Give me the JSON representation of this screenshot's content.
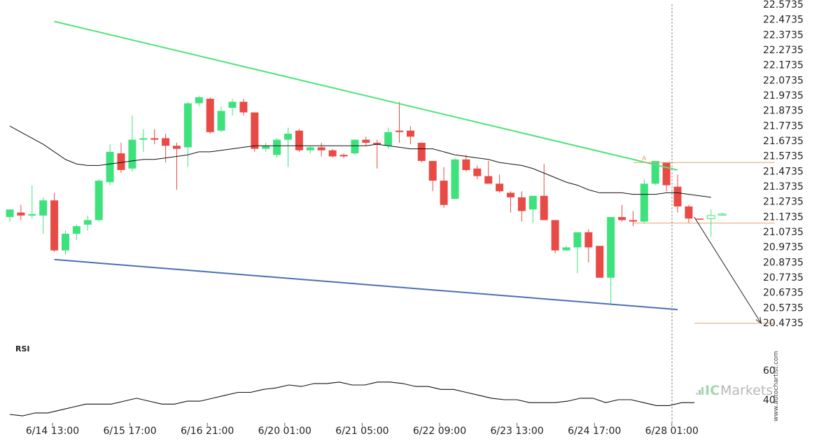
{
  "chart_data": {
    "type": "candlestick",
    "y_ticks": [
      "22.5735",
      "22.4735",
      "22.3735",
      "22.2735",
      "22.1735",
      "22.0735",
      "21.9735",
      "21.8735",
      "21.7735",
      "21.6735",
      "21.5735",
      "21.4735",
      "21.3735",
      "21.2735",
      "21.1735",
      "21.0735",
      "20.9735",
      "20.8735",
      "20.7735",
      "20.6735",
      "20.5735",
      "20.4735"
    ],
    "ylim": [
      20.4235,
      22.5735
    ],
    "x_ticks": [
      "6/14 13:00",
      "6/15 17:00",
      "6/16 21:00",
      "6/20 01:00",
      "6/21 05:00",
      "6/22 09:00",
      "6/23 13:00",
      "6/24 17:00",
      "6/28 01:00"
    ],
    "candles": [
      {
        "o": 21.17,
        "h": 21.22,
        "l": 21.14,
        "c": 21.22
      },
      {
        "o": 21.2,
        "h": 21.25,
        "l": 21.15,
        "c": 21.18
      },
      {
        "o": 21.18,
        "h": 21.38,
        "l": 21.16,
        "c": 21.19
      },
      {
        "o": 21.18,
        "h": 21.3,
        "l": 21.06,
        "c": 21.28
      },
      {
        "o": 21.28,
        "h": 21.33,
        "l": 20.94,
        "c": 20.95
      },
      {
        "o": 20.95,
        "h": 21.08,
        "l": 20.92,
        "c": 21.06
      },
      {
        "o": 21.06,
        "h": 21.12,
        "l": 21.02,
        "c": 21.11
      },
      {
        "o": 21.12,
        "h": 21.18,
        "l": 21.08,
        "c": 21.15
      },
      {
        "o": 21.15,
        "h": 21.42,
        "l": 21.14,
        "c": 21.41
      },
      {
        "o": 21.4,
        "h": 21.65,
        "l": 21.38,
        "c": 21.6
      },
      {
        "o": 21.59,
        "h": 21.66,
        "l": 21.46,
        "c": 21.48
      },
      {
        "o": 21.49,
        "h": 21.84,
        "l": 21.47,
        "c": 21.68
      },
      {
        "o": 21.68,
        "h": 21.75,
        "l": 21.6,
        "c": 21.69
      },
      {
        "o": 21.69,
        "h": 21.75,
        "l": 21.65,
        "c": 21.68
      },
      {
        "o": 21.69,
        "h": 21.72,
        "l": 21.53,
        "c": 21.64
      },
      {
        "o": 21.64,
        "h": 21.66,
        "l": 21.35,
        "c": 21.62
      },
      {
        "o": 21.63,
        "h": 21.93,
        "l": 21.5,
        "c": 21.92
      },
      {
        "o": 21.92,
        "h": 21.97,
        "l": 21.9,
        "c": 21.96
      },
      {
        "o": 21.95,
        "h": 21.96,
        "l": 21.72,
        "c": 21.73
      },
      {
        "o": 21.74,
        "h": 21.9,
        "l": 21.73,
        "c": 21.87
      },
      {
        "o": 21.89,
        "h": 21.95,
        "l": 21.84,
        "c": 21.93
      },
      {
        "o": 21.93,
        "h": 21.95,
        "l": 21.84,
        "c": 21.86
      },
      {
        "o": 21.86,
        "h": 21.86,
        "l": 21.6,
        "c": 21.62
      },
      {
        "o": 21.62,
        "h": 21.66,
        "l": 21.6,
        "c": 21.64
      },
      {
        "o": 21.58,
        "h": 21.69,
        "l": 21.56,
        "c": 21.68
      },
      {
        "o": 21.68,
        "h": 21.76,
        "l": 21.5,
        "c": 21.72
      },
      {
        "o": 21.74,
        "h": 21.75,
        "l": 21.6,
        "c": 21.61
      },
      {
        "o": 21.61,
        "h": 21.64,
        "l": 21.59,
        "c": 21.63
      },
      {
        "o": 21.63,
        "h": 21.66,
        "l": 21.57,
        "c": 21.61
      },
      {
        "o": 21.61,
        "h": 21.62,
        "l": 21.56,
        "c": 21.57
      },
      {
        "o": 21.58,
        "h": 21.59,
        "l": 21.56,
        "c": 21.57
      },
      {
        "o": 21.59,
        "h": 21.68,
        "l": 21.58,
        "c": 21.68
      },
      {
        "o": 21.68,
        "h": 21.7,
        "l": 21.64,
        "c": 21.66
      },
      {
        "o": 21.66,
        "h": 21.68,
        "l": 21.49,
        "c": 21.65
      },
      {
        "o": 21.64,
        "h": 21.76,
        "l": 21.62,
        "c": 21.73
      },
      {
        "o": 21.74,
        "h": 21.93,
        "l": 21.66,
        "c": 21.73
      },
      {
        "o": 21.74,
        "h": 21.77,
        "l": 21.65,
        "c": 21.7
      },
      {
        "o": 21.66,
        "h": 21.66,
        "l": 21.53,
        "c": 21.54
      },
      {
        "o": 21.54,
        "h": 21.54,
        "l": 21.34,
        "c": 21.41
      },
      {
        "o": 21.41,
        "h": 21.5,
        "l": 21.23,
        "c": 21.25
      },
      {
        "o": 21.29,
        "h": 21.56,
        "l": 21.29,
        "c": 21.55
      },
      {
        "o": 21.55,
        "h": 21.58,
        "l": 21.47,
        "c": 21.48
      },
      {
        "o": 21.49,
        "h": 21.51,
        "l": 21.42,
        "c": 21.44
      },
      {
        "o": 21.44,
        "h": 21.54,
        "l": 21.4,
        "c": 21.39
      },
      {
        "o": 21.39,
        "h": 21.45,
        "l": 21.33,
        "c": 21.34
      },
      {
        "o": 21.33,
        "h": 21.34,
        "l": 21.2,
        "c": 21.3
      },
      {
        "o": 21.3,
        "h": 21.34,
        "l": 21.14,
        "c": 21.21
      },
      {
        "o": 21.22,
        "h": 21.31,
        "l": 21.13,
        "c": 21.31
      },
      {
        "o": 21.31,
        "h": 21.52,
        "l": 21.15,
        "c": 21.15
      },
      {
        "o": 21.15,
        "h": 21.15,
        "l": 20.93,
        "c": 20.95
      },
      {
        "o": 20.95,
        "h": 20.98,
        "l": 20.95,
        "c": 20.97
      },
      {
        "o": 20.97,
        "h": 21.07,
        "l": 20.8,
        "c": 21.07
      },
      {
        "o": 21.07,
        "h": 21.09,
        "l": 20.87,
        "c": 20.97
      },
      {
        "o": 20.98,
        "h": 20.98,
        "l": 20.77,
        "c": 20.77
      },
      {
        "o": 20.77,
        "h": 21.17,
        "l": 20.6,
        "c": 21.17
      },
      {
        "o": 21.17,
        "h": 21.25,
        "l": 21.14,
        "c": 21.15
      },
      {
        "o": 21.15,
        "h": 21.21,
        "l": 21.11,
        "c": 21.14
      },
      {
        "o": 21.14,
        "h": 21.42,
        "l": 21.13,
        "c": 21.39
      },
      {
        "o": 21.39,
        "h": 21.54,
        "l": 21.38,
        "c": 21.54
      },
      {
        "o": 21.53,
        "h": 21.53,
        "l": 21.34,
        "c": 21.38
      },
      {
        "o": 21.37,
        "h": 21.45,
        "l": 21.2,
        "c": 21.24
      },
      {
        "o": 21.24,
        "h": 21.25,
        "l": 21.13,
        "c": 21.16
      },
      {
        "o": 21.16,
        "h": 21.16,
        "l": 21.15,
        "c": 21.155
      },
      {
        "o": 21.16,
        "h": 21.22,
        "l": 21.04,
        "c": 21.18
      },
      {
        "o": 21.19,
        "h": 21.2,
        "l": 21.18,
        "c": 21.19
      }
    ],
    "moving_average": [
      21.77,
      21.73,
      21.69,
      21.65,
      21.6,
      21.55,
      21.52,
      21.51,
      21.51,
      21.52,
      21.53,
      21.54,
      21.55,
      21.55,
      21.56,
      21.57,
      21.58,
      21.6,
      21.6,
      21.61,
      21.62,
      21.63,
      21.64,
      21.64,
      21.64,
      21.64,
      21.64,
      21.64,
      21.64,
      21.64,
      21.64,
      21.64,
      21.64,
      21.65,
      21.64,
      21.63,
      21.62,
      21.62,
      21.62,
      21.6,
      21.58,
      21.57,
      21.56,
      21.55,
      21.53,
      21.52,
      21.51,
      21.49,
      21.46,
      21.43,
      21.4,
      21.38,
      21.35,
      21.33,
      21.33,
      21.33,
      21.32,
      21.32,
      21.32,
      21.33,
      21.33,
      21.32,
      21.31,
      21.3
    ],
    "trendlines": [
      {
        "name": "resistance",
        "color": "#4ee37a",
        "from_index": 4,
        "from_value": 22.46,
        "to_index": 60,
        "to_value": 21.48
      },
      {
        "name": "support",
        "color": "#4a70b5",
        "from_index": 4,
        "from_value": 20.89,
        "to_index": 60,
        "to_value": 20.56
      }
    ],
    "levels": [
      {
        "value": 21.53,
        "color": "#e3a46a",
        "label": "A",
        "label_index": 57
      },
      {
        "value": 21.13,
        "color": "#e3a46a"
      },
      {
        "value": 20.47,
        "color": "#e3a46a"
      }
    ],
    "forecast_arrow": {
      "from_index": 61.5,
      "from_value": 21.17,
      "to_index": 67.5,
      "to_value": 20.47
    },
    "current_index": 60,
    "rsi": {
      "label": "RSI",
      "ticks": [
        "60",
        "40"
      ],
      "ylim": [
        25,
        70
      ],
      "values": [
        30,
        29,
        31,
        31,
        33,
        35,
        37,
        37,
        37,
        39,
        41,
        39,
        37,
        37,
        39,
        39,
        41,
        43,
        45,
        45,
        47,
        48,
        50,
        49,
        51,
        51,
        52,
        50,
        50,
        52,
        52,
        51,
        49,
        49,
        47,
        47,
        45,
        43,
        41,
        40,
        40,
        38,
        38,
        38,
        39,
        41,
        41,
        38,
        40,
        40,
        38,
        36,
        36,
        38,
        38
      ]
    },
    "bull_color": "#3ee27d",
    "bear_color": "#e84b45"
  },
  "brand": {
    "ic": "IC",
    "markets": "Markets"
  },
  "watermark": "www.autochartist.com"
}
